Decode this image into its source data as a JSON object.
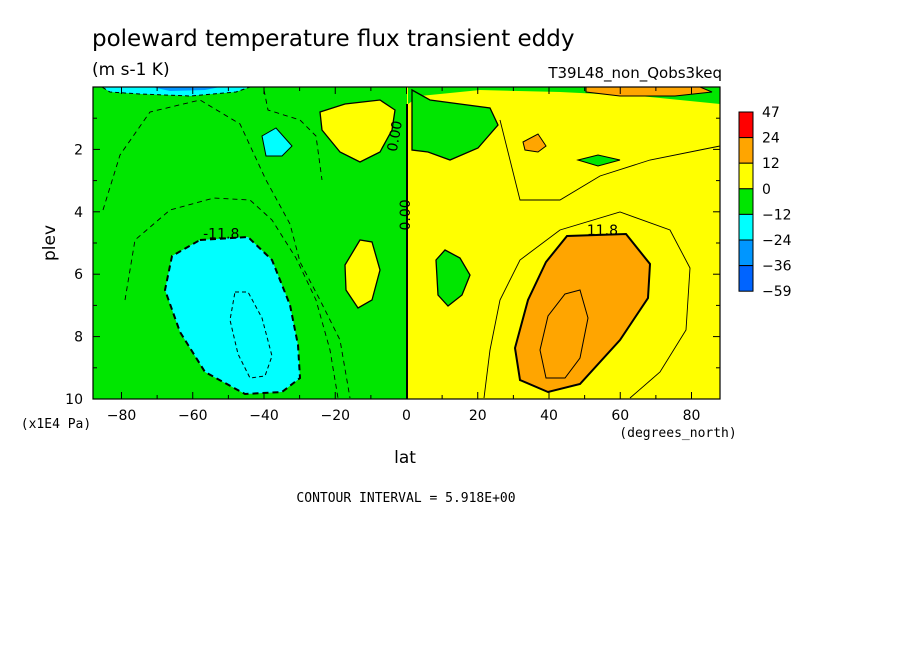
{
  "chart_data": {
    "type": "heatmap",
    "title": "poleward temperature flux transient eddy",
    "subtitle": "(m s-1 K)",
    "run_label": "T39L48_non_Qobs3keq",
    "xlabel": "lat",
    "x_units": "(degrees_north)",
    "ylabel": "plev",
    "y_units": "(x1E4 Pa)",
    "x_range": [
      -88,
      88
    ],
    "y_range": [
      0,
      10
    ],
    "y_inverted": true,
    "x_ticks": [
      -80,
      -60,
      -40,
      -20,
      0,
      20,
      40,
      60,
      80
    ],
    "x_tick_labels": [
      "−80",
      "−60",
      "−40",
      "−20",
      "0",
      "20",
      "40",
      "60",
      "80"
    ],
    "y_ticks": [
      2,
      4,
      6,
      8,
      10
    ],
    "y_tick_labels": [
      "2",
      "4",
      "6",
      "8",
      "10"
    ],
    "contour_interval_text": "CONTOUR INTERVAL = 5.918E+00",
    "contour_labels": [
      {
        "text": "-11.8",
        "x": -52,
        "y": 4.85,
        "rotate": 0
      },
      {
        "text": "11.8",
        "x": 55,
        "y": 4.75,
        "rotate": 0
      },
      {
        "text": "0.00",
        "x": -2,
        "y": 1.6,
        "rotate": -80
      },
      {
        "text": "0.00",
        "x": 1,
        "y": 4.1,
        "rotate": -90
      }
    ],
    "colorbar": {
      "labels": [
        "47",
        "24",
        "12",
        "0",
        "−12",
        "−24",
        "−36",
        "−59"
      ],
      "colors": [
        "#ff0000",
        "#ffa500",
        "#ffff00",
        "#00e600",
        "#00ffff",
        "#0096ff",
        "#0064ff"
      ]
    },
    "grid": false,
    "legend_position": "right"
  }
}
